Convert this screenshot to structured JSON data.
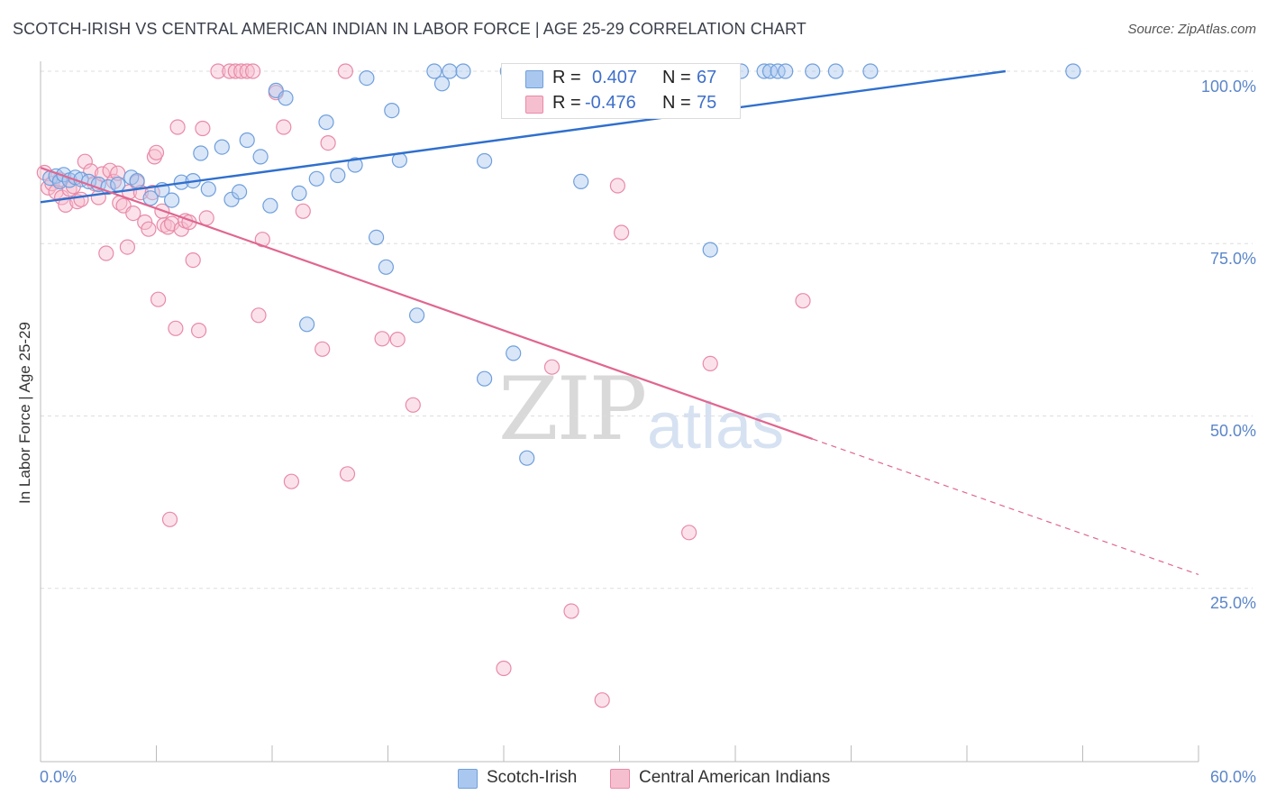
{
  "title": "SCOTCH-IRISH VS CENTRAL AMERICAN INDIAN IN LABOR FORCE | AGE 25-29 CORRELATION CHART",
  "source": "Source: ZipAtlas.com",
  "watermark": {
    "zip": "ZIP",
    "atlas": "atlas"
  },
  "colors": {
    "blue_fill": "#aac8ef",
    "blue_stroke": "#6f9fdc",
    "blue_line": "#2f6fce",
    "pink_fill": "#f6bfd0",
    "pink_stroke": "#e98aa8",
    "pink_line": "#e06690",
    "axis_text": "#5b86c9",
    "grid": "#dddddd"
  },
  "legend": {
    "rows": [
      {
        "r_label": "R =",
        "r_value": "0.407",
        "n_label": "N =",
        "n_value": "67"
      },
      {
        "r_label": "R =",
        "r_value": "-0.476",
        "n_label": "N =",
        "n_value": "75"
      }
    ]
  },
  "bottom_legend": {
    "series1": "Scotch-Irish",
    "series2": "Central American Indians"
  },
  "chart_data": {
    "type": "scatter",
    "title": "SCOTCH-IRISH VS CENTRAL AMERICAN INDIAN IN LABOR FORCE | AGE 25-29 CORRELATION CHART",
    "xlabel": "",
    "ylabel": "In Labor Force | Age 25-29",
    "xlim": [
      0,
      60
    ],
    "ylim": [
      0,
      105
    ],
    "x_tick_labels": [
      "0.0%",
      "60.0%"
    ],
    "y_tick_labels": [
      "100.0%",
      "75.0%",
      "50.0%",
      "25.0%"
    ],
    "y_ticks": [
      100,
      75,
      50,
      25
    ],
    "grid": true,
    "legend_position": "top-center",
    "series": [
      {
        "name": "Scotch-Irish",
        "R": 0.407,
        "N": 67,
        "trend": {
          "x": [
            0,
            50
          ],
          "y": [
            81,
            100
          ]
        },
        "points": [
          [
            0.5,
            84.5
          ],
          [
            0.8,
            84.8
          ],
          [
            1.0,
            84
          ],
          [
            1.2,
            85
          ],
          [
            1.5,
            84.2
          ],
          [
            1.8,
            84.6
          ],
          [
            2.1,
            84.3
          ],
          [
            2.5,
            84
          ],
          [
            3.0,
            83.6
          ],
          [
            3.5,
            83.2
          ],
          [
            4.0,
            83.6
          ],
          [
            4.7,
            84.6
          ],
          [
            5.0,
            84.1
          ],
          [
            5.7,
            81.6
          ],
          [
            6.3,
            82.8
          ],
          [
            6.8,
            81.3
          ],
          [
            7.3,
            83.9
          ],
          [
            7.9,
            84.1
          ],
          [
            8.3,
            88.1
          ],
          [
            8.7,
            82.9
          ],
          [
            9.4,
            89.0
          ],
          [
            9.9,
            81.4
          ],
          [
            10.3,
            82.5
          ],
          [
            10.7,
            90.0
          ],
          [
            11.4,
            87.6
          ],
          [
            11.9,
            80.5
          ],
          [
            12.2,
            97.2
          ],
          [
            12.7,
            96.1
          ],
          [
            13.4,
            82.3
          ],
          [
            13.8,
            63.3
          ],
          [
            14.3,
            84.4
          ],
          [
            14.8,
            92.6
          ],
          [
            15.4,
            84.9
          ],
          [
            16.3,
            86.4
          ],
          [
            16.9,
            99.0
          ],
          [
            17.4,
            75.9
          ],
          [
            17.9,
            71.6
          ],
          [
            18.2,
            94.3
          ],
          [
            18.6,
            87.1
          ],
          [
            19.5,
            64.6
          ],
          [
            20.4,
            100
          ],
          [
            20.8,
            98.2
          ],
          [
            21.2,
            100
          ],
          [
            21.9,
            100
          ],
          [
            23.0,
            55.4
          ],
          [
            23.0,
            87.0
          ],
          [
            24.2,
            100
          ],
          [
            24.5,
            59.1
          ],
          [
            25.2,
            43.9
          ],
          [
            25.6,
            100
          ],
          [
            26.2,
            100
          ],
          [
            28.0,
            84.0
          ],
          [
            29.0,
            100
          ],
          [
            29.4,
            100
          ],
          [
            31.0,
            100
          ],
          [
            32.8,
            100
          ],
          [
            34.7,
            74.1
          ],
          [
            35.0,
            100
          ],
          [
            36.3,
            100
          ],
          [
            37.5,
            100
          ],
          [
            37.8,
            100
          ],
          [
            38.2,
            100
          ],
          [
            38.6,
            100
          ],
          [
            40.0,
            100
          ],
          [
            41.2,
            100
          ],
          [
            43.0,
            100
          ],
          [
            53.5,
            100
          ]
        ]
      },
      {
        "name": "Central American Indians",
        "R": -0.476,
        "N": 75,
        "trend": {
          "x": [
            0,
            60
          ],
          "y": [
            86,
            27
          ]
        },
        "trend_solid_until_x": 40,
        "points": [
          [
            0.2,
            85.3
          ],
          [
            0.4,
            83.1
          ],
          [
            0.6,
            83.7
          ],
          [
            0.8,
            82.5
          ],
          [
            1.0,
            84.3
          ],
          [
            1.1,
            81.7
          ],
          [
            1.3,
            80.6
          ],
          [
            1.5,
            82.9
          ],
          [
            1.7,
            83.3
          ],
          [
            1.9,
            81.1
          ],
          [
            2.1,
            81.4
          ],
          [
            2.3,
            86.9
          ],
          [
            2.6,
            85.5
          ],
          [
            2.8,
            83.7
          ],
          [
            3.0,
            81.7
          ],
          [
            3.2,
            85.1
          ],
          [
            3.4,
            73.6
          ],
          [
            3.6,
            85.6
          ],
          [
            3.8,
            84.0
          ],
          [
            4.0,
            85.2
          ],
          [
            4.1,
            80.9
          ],
          [
            4.3,
            80.5
          ],
          [
            4.5,
            74.5
          ],
          [
            4.6,
            82.5
          ],
          [
            4.8,
            79.4
          ],
          [
            5.0,
            83.9
          ],
          [
            5.2,
            82.4
          ],
          [
            5.4,
            78.1
          ],
          [
            5.6,
            77.1
          ],
          [
            5.8,
            82.4
          ],
          [
            5.9,
            87.6
          ],
          [
            6.0,
            88.2
          ],
          [
            6.1,
            66.9
          ],
          [
            6.3,
            79.7
          ],
          [
            6.4,
            77.7
          ],
          [
            6.6,
            77.4
          ],
          [
            6.8,
            77.9
          ],
          [
            7.0,
            62.7
          ],
          [
            7.1,
            91.9
          ],
          [
            7.3,
            77.1
          ],
          [
            7.5,
            78.3
          ],
          [
            7.7,
            78.1
          ],
          [
            7.9,
            72.6
          ],
          [
            8.2,
            62.4
          ],
          [
            8.4,
            91.7
          ],
          [
            8.6,
            78.7
          ],
          [
            6.7,
            35.0
          ],
          [
            9.2,
            100
          ],
          [
            9.8,
            100
          ],
          [
            10.1,
            100
          ],
          [
            10.4,
            100
          ],
          [
            10.7,
            100
          ],
          [
            11.0,
            100
          ],
          [
            11.3,
            64.6
          ],
          [
            11.5,
            75.6
          ],
          [
            12.2,
            96.9
          ],
          [
            12.6,
            91.9
          ],
          [
            13.0,
            40.5
          ],
          [
            13.6,
            79.7
          ],
          [
            14.6,
            59.7
          ],
          [
            14.9,
            89.6
          ],
          [
            15.8,
            100
          ],
          [
            15.9,
            41.6
          ],
          [
            17.7,
            61.2
          ],
          [
            18.5,
            61.1
          ],
          [
            19.3,
            51.6
          ],
          [
            24.0,
            13.4
          ],
          [
            26.5,
            57.1
          ],
          [
            27.5,
            21.7
          ],
          [
            29.1,
            8.8
          ],
          [
            29.9,
            83.4
          ],
          [
            30.1,
            76.6
          ],
          [
            33.6,
            33.1
          ],
          [
            34.7,
            57.6
          ],
          [
            39.5,
            66.7
          ]
        ]
      }
    ]
  }
}
